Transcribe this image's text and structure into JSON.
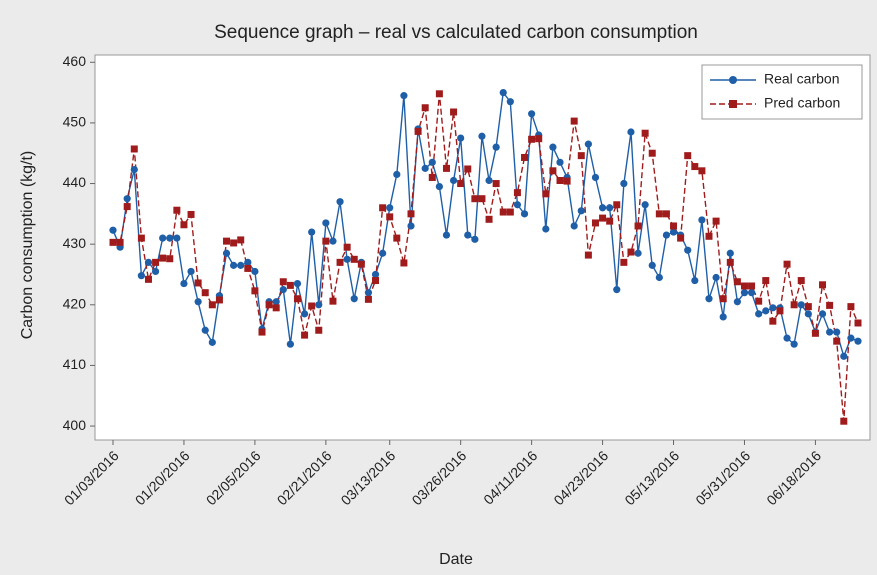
{
  "chart_data": {
    "type": "line",
    "title": "Sequence graph – real vs calculated carbon consumption",
    "x_label": "Date",
    "y_label": "Carbon consumption (kg/t)",
    "categories": [
      "01/03/2016",
      null,
      null,
      null,
      null,
      null,
      null,
      null,
      null,
      null,
      "01/20/2016",
      null,
      null,
      null,
      null,
      null,
      null,
      null,
      null,
      null,
      "02/05/2016",
      null,
      null,
      null,
      null,
      null,
      null,
      null,
      null,
      null,
      "02/21/2016",
      null,
      null,
      null,
      null,
      null,
      null,
      null,
      null,
      "03/13/2016",
      null,
      null,
      null,
      null,
      null,
      null,
      null,
      null,
      null,
      "03/26/2016",
      null,
      null,
      null,
      null,
      null,
      null,
      null,
      null,
      null,
      "04/11/2016",
      null,
      null,
      null,
      null,
      null,
      null,
      null,
      null,
      null,
      "04/23/2016",
      null,
      null,
      null,
      null,
      null,
      null,
      null,
      null,
      null,
      "05/13/2016",
      null,
      null,
      null,
      null,
      null,
      null,
      null,
      null,
      null,
      "05/31/2016",
      null,
      null,
      null,
      null,
      null,
      null,
      null,
      null,
      null,
      "06/18/2016",
      null,
      null,
      null,
      null,
      null,
      null
    ],
    "series": [
      {
        "name": "Real carbon",
        "color": "#1f5fa8",
        "marker": "circle",
        "dashed": false,
        "values": [
          432.3,
          429.5,
          437.5,
          442.3,
          424.8,
          427,
          425.5,
          431,
          431,
          431,
          423.5,
          425.5,
          420.5,
          415.8,
          413.8,
          421.5,
          428.5,
          426.5,
          426.5,
          427,
          425.5,
          416,
          420.5,
          420.5,
          422.5,
          413.5,
          423.5,
          418.5,
          432,
          420,
          433.5,
          430.5,
          437,
          427.5,
          421,
          427,
          422,
          425,
          428.5,
          436,
          441.5,
          454.5,
          433,
          449,
          442.5,
          443.5,
          439.5,
          431.5,
          440.5,
          447.5,
          431.5,
          430.8,
          447.8,
          440.5,
          446,
          455,
          453.5,
          436.5,
          435,
          451.5,
          448,
          432.5,
          446,
          443.5,
          441,
          433,
          435.5,
          446.5,
          441,
          436,
          436,
          422.5,
          440,
          448.5,
          428.5,
          436.5,
          426.5,
          424.5,
          431.5,
          432,
          431.5,
          429,
          424,
          434,
          421,
          424.5,
          418,
          428.5,
          420.5,
          422,
          422,
          418.5,
          419,
          419.5,
          419.5,
          414.5,
          413.5,
          420,
          418.5,
          415.5,
          418.5,
          415.5,
          415.5,
          411.5,
          414.5,
          414
        ]
      },
      {
        "name": "Pred carbon",
        "color": "#a01c1c",
        "marker": "square",
        "dashed": true,
        "values": [
          430.3,
          430.3,
          436.2,
          445.7,
          431,
          424.2,
          427,
          427.7,
          427.6,
          435.6,
          433.2,
          434.9,
          423.6,
          422,
          420,
          420.8,
          430.5,
          430.2,
          430.7,
          426,
          422.3,
          415.5,
          420,
          419.5,
          423.8,
          423.2,
          421,
          415,
          419.8,
          415.8,
          430.5,
          420.6,
          427,
          429.5,
          427.5,
          426.7,
          420.9,
          424,
          436,
          434.5,
          431,
          426.9,
          435,
          448.6,
          452.5,
          441,
          454.8,
          442.5,
          451.8,
          440,
          442.4,
          437.5,
          437.5,
          434.1,
          440,
          435.3,
          435.3,
          438.5,
          444.3,
          447.3,
          447.4,
          438.3,
          442.1,
          440.5,
          440.4,
          450.3,
          444.6,
          428.2,
          433.5,
          434.3,
          433.8,
          436.5,
          427,
          428.7,
          433,
          448.3,
          445,
          435,
          435,
          433,
          431,
          444.6,
          442.8,
          442.1,
          431.3,
          433.8,
          421,
          427,
          423.8,
          423.1,
          423.1,
          420.6,
          424,
          417.3,
          419,
          426.7,
          420,
          424,
          419.7,
          415.3,
          423.3,
          419.9,
          414,
          400.8,
          419.7,
          417
        ]
      }
    ],
    "ylim": [
      397.7,
      461.2
    ],
    "yticks": [
      400,
      410,
      420,
      430,
      440,
      450,
      460
    ],
    "legend": "top-right"
  }
}
